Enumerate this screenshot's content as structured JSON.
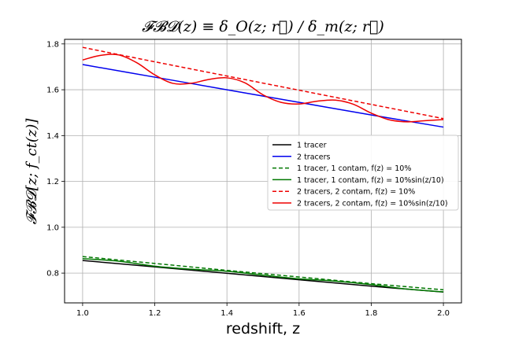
{
  "chart_data": {
    "type": "line",
    "title": "𝓕𝓑𝓓(z) ≡ δ_O(z; r⃗) / δ_m(z; r⃗)",
    "xlabel": "redshift, z",
    "ylabel": "𝓕𝓑𝓓[z; f_ct(z)]",
    "xlim": [
      0.95,
      2.05
    ],
    "ylim": [
      0.67,
      1.82
    ],
    "xticks": [
      "1.0",
      "1.2",
      "1.4",
      "1.6",
      "1.8",
      "2.0"
    ],
    "yticks": [
      "0.8",
      "1.0",
      "1.2",
      "1.4",
      "1.6",
      "1.8"
    ],
    "grid": true,
    "legend_position": "center-right",
    "series": [
      {
        "name": "1 tracer",
        "color": "#000000",
        "dash": "solid",
        "x": [
          1.0,
          1.2,
          1.4,
          1.6,
          1.8,
          2.0
        ],
        "y": [
          0.855,
          0.827,
          0.799,
          0.771,
          0.743,
          0.717
        ]
      },
      {
        "name": "2 tracers",
        "color": "#0000ee",
        "dash": "solid",
        "x": [
          1.0,
          1.2,
          1.4,
          1.6,
          1.8,
          2.0
        ],
        "y": [
          1.71,
          1.655,
          1.6,
          1.545,
          1.49,
          1.437
        ]
      },
      {
        "name": "1 tracer, 1 contam, f(z) = 10%",
        "color": "#007700",
        "dash": "dashed",
        "x": [
          1.0,
          1.2,
          1.4,
          1.6,
          1.8,
          2.0
        ],
        "y": [
          0.872,
          0.842,
          0.812,
          0.783,
          0.754,
          0.727
        ]
      },
      {
        "name": "1 tracer, 1 contam, f(z) = 10%sin(z/10)",
        "color": "#007700",
        "dash": "solid",
        "x": [
          1.0,
          1.1,
          1.2,
          1.3,
          1.4,
          1.5,
          1.6,
          1.7,
          1.8,
          1.9,
          2.0
        ],
        "y": [
          0.863,
          0.852,
          0.83,
          0.817,
          0.808,
          0.791,
          0.775,
          0.765,
          0.75,
          0.73,
          0.718
        ]
      },
      {
        "name": "2 tracers, 2 contam, f(z) = 10%",
        "color": "#ee0000",
        "dash": "dashed",
        "x": [
          1.0,
          1.2,
          1.4,
          1.6,
          1.8,
          2.0
        ],
        "y": [
          1.785,
          1.722,
          1.66,
          1.598,
          1.536,
          1.474
        ]
      },
      {
        "name": "2 tracers, 2 contam, f(z) = 10%sin(z/10)",
        "color": "#ee0000",
        "dash": "solid",
        "x": [
          1.0,
          1.05,
          1.1,
          1.15,
          1.2,
          1.25,
          1.3,
          1.35,
          1.4,
          1.45,
          1.5,
          1.55,
          1.6,
          1.65,
          1.7,
          1.75,
          1.8,
          1.85,
          1.9,
          1.95,
          2.0
        ],
        "y": [
          1.73,
          1.75,
          1.752,
          1.718,
          1.665,
          1.628,
          1.628,
          1.645,
          1.652,
          1.63,
          1.578,
          1.545,
          1.538,
          1.55,
          1.555,
          1.537,
          1.498,
          1.469,
          1.46,
          1.465,
          1.47
        ]
      }
    ]
  }
}
